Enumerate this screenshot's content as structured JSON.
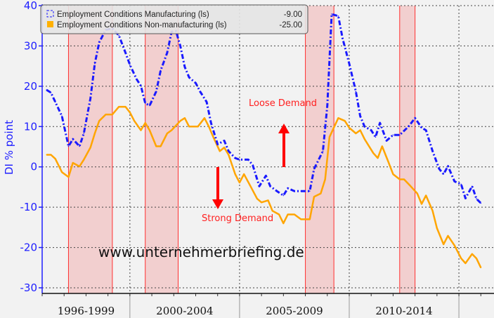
{
  "chart_data": {
    "type": "line",
    "title": "",
    "xlabel": "",
    "ylabel": "DI % point",
    "ylim": [
      -30,
      40
    ],
    "xlim": [
      1996.0,
      2016.6
    ],
    "yticks": [
      40,
      30,
      20,
      10,
      0,
      -10,
      -20,
      -30
    ],
    "grid": true,
    "x_groups": [
      "1996-1999",
      "2000-2004",
      "2005-2009",
      "2010-2014"
    ],
    "legend_placement": "top-left",
    "series": [
      {
        "name": "Employment Conditions Manufacturing (ls)",
        "last_value": "-9.00",
        "color": "#1a1aff",
        "style": "dash-dot",
        "x": [
          1996.2,
          1996.4,
          1996.6,
          1996.9,
          1997.2,
          1997.4,
          1997.7,
          1997.9,
          1998.2,
          1998.4,
          1998.6,
          1998.9,
          1999.2,
          1999.5,
          1999.8,
          2000.0,
          2000.3,
          2000.5,
          2000.7,
          2000.9,
          2001.2,
          2001.4,
          2001.7,
          2001.9,
          2002.1,
          2002.3,
          2002.5,
          2002.7,
          2003.0,
          2003.2,
          2003.5,
          2003.7,
          2004.0,
          2004.3,
          2004.5,
          2004.8,
          2005.0,
          2005.4,
          2005.6,
          2005.9,
          2006.2,
          2006.4,
          2006.7,
          2007.0,
          2007.2,
          2007.5,
          2007.8,
          2008.2,
          2008.4,
          2008.8,
          2009.0,
          2009.2,
          2009.5,
          2009.7,
          2010.0,
          2010.3,
          2010.5,
          2010.7,
          2011.0,
          2011.2,
          2011.4,
          2011.7,
          2012.0,
          2012.3,
          2012.7,
          2013.0,
          2013.3,
          2013.5,
          2013.8,
          2014.1,
          2014.3,
          2014.5,
          2014.8,
          2015.1,
          2015.3,
          2015.6,
          2015.8,
          2016.0
        ],
        "values": [
          19.1,
          18.4,
          16.1,
          12.6,
          5.1,
          6.9,
          5.1,
          8.3,
          17.0,
          25.6,
          30.9,
          34.0,
          34.3,
          32.6,
          28.3,
          25.3,
          21.8,
          20.1,
          15.8,
          15.2,
          18.7,
          23.9,
          28.3,
          33.5,
          33.7,
          30.0,
          24.8,
          22.2,
          20.8,
          18.7,
          16.1,
          10.9,
          5.6,
          6.5,
          3.9,
          2.2,
          1.8,
          1.8,
          0.4,
          -4.8,
          -2.2,
          -4.8,
          -6.0,
          -7.1,
          -5.3,
          -6.0,
          -6.0,
          -6.0,
          -0.5,
          3.9,
          15.2,
          37.9,
          37.4,
          31.8,
          25.6,
          18.7,
          12.6,
          10.0,
          9.1,
          7.4,
          10.9,
          6.5,
          7.9,
          7.9,
          10.0,
          12.1,
          9.7,
          9.1,
          3.9,
          -0.5,
          -1.8,
          0.2,
          -3.6,
          -4.3,
          -7.8,
          -4.8,
          -7.9,
          -9.0
        ]
      },
      {
        "name": "Employment Conditions Non-manufacturing (ls)",
        "last_value": "-25.00",
        "color": "#ffa500",
        "style": "solid",
        "x": [
          1996.2,
          1996.4,
          1996.6,
          1996.9,
          1997.2,
          1997.4,
          1997.7,
          1997.9,
          1998.2,
          1998.4,
          1998.6,
          1998.9,
          1999.2,
          1999.5,
          1999.8,
          2000.0,
          2000.2,
          2000.5,
          2000.7,
          2000.9,
          2001.2,
          2001.4,
          2001.7,
          2001.9,
          2002.3,
          2002.5,
          2002.7,
          2003.1,
          2003.4,
          2003.6,
          2003.8,
          2004.1,
          2004.3,
          2004.5,
          2004.8,
          2005.0,
          2005.2,
          2005.5,
          2005.8,
          2006.0,
          2006.3,
          2006.5,
          2006.8,
          2007.0,
          2007.2,
          2007.5,
          2007.8,
          2008.2,
          2008.4,
          2008.7,
          2008.9,
          2009.1,
          2009.5,
          2009.8,
          2010.0,
          2010.3,
          2010.5,
          2010.7,
          2011.1,
          2011.3,
          2011.5,
          2011.8,
          2012.0,
          2012.3,
          2012.5,
          2012.8,
          2013.1,
          2013.3,
          2013.5,
          2013.8,
          2014.0,
          2014.3,
          2014.5,
          2014.8,
          2015.1,
          2015.3,
          2015.6,
          2015.8,
          2016.0
        ],
        "values": [
          3.0,
          3.0,
          2.0,
          -1.3,
          -2.5,
          1.0,
          0.1,
          1.8,
          4.8,
          8.3,
          11.4,
          13.0,
          13.0,
          14.9,
          14.9,
          13.5,
          11.4,
          9.1,
          10.9,
          9.1,
          5.1,
          5.1,
          8.3,
          9.1,
          11.4,
          12.1,
          10.0,
          10.0,
          12.1,
          10.0,
          7.4,
          3.9,
          4.8,
          3.0,
          -1.8,
          -3.9,
          -1.8,
          -4.8,
          -7.9,
          -8.8,
          -8.3,
          -10.9,
          -11.8,
          -14.0,
          -11.8,
          -11.8,
          -13.0,
          -13.0,
          -7.4,
          -6.6,
          -3.1,
          7.4,
          12.1,
          11.4,
          9.7,
          8.3,
          9.1,
          6.9,
          3.4,
          2.2,
          5.1,
          1.0,
          -1.8,
          -3.1,
          -3.1,
          -4.8,
          -6.6,
          -9.2,
          -7.1,
          -10.9,
          -15.2,
          -19.2,
          -17.1,
          -19.5,
          -22.7,
          -23.9,
          -21.6,
          -22.7,
          -25.0
        ]
      }
    ],
    "shaded_periods": [
      [
        1997.2,
        1999.2
      ],
      [
        2000.7,
        2002.2
      ],
      [
        2008.0,
        2009.3
      ],
      [
        2012.3,
        2013.0
      ]
    ],
    "annotations": {
      "loose": "Loose Demand",
      "strong": "Strong Demand",
      "watermark": "www.unternehmerbriefing.de"
    }
  }
}
